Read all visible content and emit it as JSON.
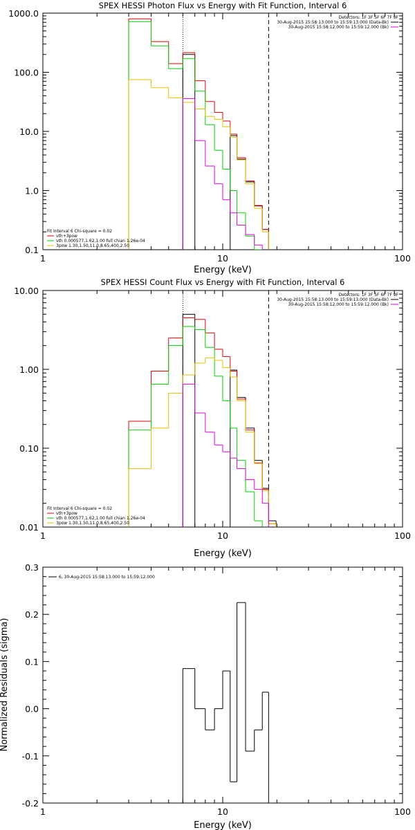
{
  "chart_data": [
    {
      "type": "line",
      "step": true,
      "title": "SPEX HESSI Photon Flux vs Energy with Fit Function, Interval 6",
      "xlabel": "Energy (keV)",
      "ylabel": "",
      "xscale": "log",
      "yscale": "log",
      "xlim": [
        1,
        100
      ],
      "ylim": [
        0.1,
        1000
      ],
      "x_ticks": [
        1,
        10,
        100
      ],
      "x_tick_labels": [
        "1",
        "10",
        "100"
      ],
      "y_ticks": [
        0.1,
        1,
        10,
        100,
        1000
      ],
      "y_tick_labels": [
        "0.1",
        "1.0",
        "10.0",
        "100.0",
        "1000.0"
      ],
      "x_edges": [
        3.0,
        4.0,
        5.0,
        6.0,
        7.0,
        8.0,
        9.0,
        10.0,
        11.0,
        12.0,
        13.4,
        15.0,
        16.6,
        18.0
      ],
      "series": [
        {
          "color": "#000000",
          "values": [
            null,
            null,
            null,
            200,
            null,
            null,
            null,
            null,
            8.5,
            3.4,
            1.4,
            0.55,
            0.22
          ]
        },
        {
          "color": "#e00000",
          "values": [
            800,
            330,
            140,
            215,
            72,
            32,
            21,
            15,
            9.0,
            3.6,
            1.45,
            0.56,
            0.22
          ]
        },
        {
          "color": "#00d000",
          "values": [
            720,
            280,
            115,
            170,
            48,
            13,
            4.8,
            2.3,
            1.0,
            0.42,
            0.17,
            0.1,
            null
          ]
        },
        {
          "color": "#e0c000",
          "values": [
            75,
            55,
            37,
            31,
            24,
            18,
            16,
            12,
            8.0,
            3.3,
            1.3,
            0.5,
            0.2
          ]
        },
        {
          "color": "#e000e0",
          "values": [
            null,
            null,
            null,
            36,
            7.0,
            2.6,
            1.3,
            0.7,
            0.42,
            0.26,
            0.18,
            0.12,
            null
          ]
        }
      ],
      "vlines": [
        {
          "x": 6.0,
          "style": "dotted"
        },
        {
          "x": 18.0,
          "style": "dashed"
        }
      ],
      "legend": {
        "position": "top-right",
        "header": "Detectors: 1F 3F 5F 6F 7F 9F",
        "entries": [
          {
            "text": "30-Aug-2015 15:58:13.000 to 15:59:13.000 (Data-Bk)",
            "color": "#000000"
          },
          {
            "text": "30-Aug-2015 15:58:12.000 to 15:59:12.000 (Bk)",
            "color": "#e000e0"
          }
        ]
      },
      "fit_legend": {
        "position": "bottom-left",
        "lines": [
          {
            "text": "Fit Interval  6   Chi-square = 0.02",
            "color": "#000000"
          },
          {
            "text": "vth+3pow",
            "color": "#e00000"
          },
          {
            "text": "vth 0.000577,1.62,1.00   full chian 1.26e-04",
            "color": "#00d000"
          },
          {
            "text": "3pow 1.30,1.50,11.0,8.65,400,2.50",
            "color": "#e0c000"
          }
        ]
      }
    },
    {
      "type": "line",
      "step": true,
      "title": "SPEX HESSI Count Flux vs Energy with Fit Function, Interval 6",
      "xlabel": "Energy (keV)",
      "ylabel": "",
      "xscale": "log",
      "yscale": "log",
      "xlim": [
        1,
        100
      ],
      "ylim": [
        0.01,
        10
      ],
      "x_ticks": [
        1,
        10,
        100
      ],
      "x_tick_labels": [
        "1",
        "10",
        "100"
      ],
      "y_ticks": [
        0.01,
        0.1,
        1,
        10
      ],
      "y_tick_labels": [
        "0.01",
        "0.10",
        "1.00",
        "10.00"
      ],
      "x_edges": [
        3.0,
        4.0,
        5.0,
        6.0,
        7.0,
        8.0,
        9.0,
        10.0,
        11.0,
        12.0,
        13.4,
        15.0,
        16.6,
        18.0,
        19.8
      ],
      "series": [
        {
          "color": "#000000",
          "values": [
            null,
            null,
            null,
            5.0,
            null,
            null,
            null,
            null,
            0.98,
            0.44,
            0.18,
            0.07,
            0.031,
            0.012
          ]
        },
        {
          "color": "#e00000",
          "values": [
            0.22,
            0.95,
            2.5,
            4.5,
            4.3,
            2.9,
            1.8,
            1.45,
            0.95,
            0.42,
            0.17,
            0.065,
            0.03,
            0.011
          ]
        },
        {
          "color": "#00d000",
          "values": [
            0.17,
            0.65,
            2.0,
            3.5,
            3.2,
            1.9,
            0.82,
            0.4,
            0.18,
            0.07,
            0.028,
            0.012,
            null,
            null
          ]
        },
        {
          "color": "#e0c000",
          "values": [
            0.055,
            0.18,
            0.5,
            0.85,
            1.2,
            1.4,
            1.3,
            1.05,
            0.8,
            0.4,
            0.16,
            0.064,
            0.029,
            0.011
          ]
        },
        {
          "color": "#e000e0",
          "values": [
            null,
            null,
            null,
            0.65,
            0.28,
            0.16,
            0.11,
            0.09,
            0.075,
            0.055,
            0.04,
            0.03,
            0.02,
            null
          ]
        }
      ],
      "vlines": [
        {
          "x": 6.0,
          "style": "dotted"
        },
        {
          "x": 18.0,
          "style": "dashed"
        }
      ],
      "legend": {
        "position": "top-right",
        "header": "Detectors: 1F 3F 5F 6F 7F 9F",
        "entries": [
          {
            "text": "30-Aug-2015 15:58:13.000 to 15:59:13.000 (Data-Bk)",
            "color": "#000000"
          },
          {
            "text": "30-Aug-2015 15:58:12.000 to 15:59:12.000 (Bk)",
            "color": "#e000e0"
          }
        ]
      },
      "fit_legend": {
        "position": "bottom-left",
        "lines": [
          {
            "text": "Fit Interval  6   Chi-square = 0.02",
            "color": "#000000"
          },
          {
            "text": "vth+3pow",
            "color": "#e00000"
          },
          {
            "text": "vth 0.000577,1.62,1.00   full chian 1.26e-04",
            "color": "#00d000"
          },
          {
            "text": "3pow 1.30,1.50,11.0,8.65,400,2.50",
            "color": "#e0c000"
          }
        ]
      }
    },
    {
      "type": "line",
      "step": true,
      "title": "",
      "xlabel": "Energy (keV)",
      "ylabel": "Normalized Residuals (sigma)",
      "xscale": "log",
      "yscale": "linear",
      "xlim": [
        1,
        100
      ],
      "ylim": [
        -0.2,
        0.3
      ],
      "x_ticks": [
        1,
        10,
        100
      ],
      "x_tick_labels": [
        "1",
        "10",
        "100"
      ],
      "y_ticks": [
        -0.2,
        -0.1,
        0.0,
        0.1,
        0.2,
        0.3
      ],
      "y_tick_labels": [
        "-0.2",
        "-0.1",
        "0.0",
        "0.1",
        "0.2",
        "0.3"
      ],
      "x_edges": [
        6.0,
        7.0,
        8.0,
        9.0,
        10.0,
        11.0,
        12.0,
        13.4,
        15.0,
        16.6,
        18.0
      ],
      "series": [
        {
          "color": "#000000",
          "values": [
            0.085,
            0.0,
            -0.045,
            0.0,
            0.08,
            -0.155,
            0.225,
            -0.09,
            -0.045,
            0.035
          ]
        }
      ],
      "legend": {
        "position": "top-left",
        "entries": [
          {
            "text": "6, 30-Aug-2015 15:58:13.000 to 15:59:12.000",
            "color": "#000000"
          }
        ]
      }
    }
  ]
}
